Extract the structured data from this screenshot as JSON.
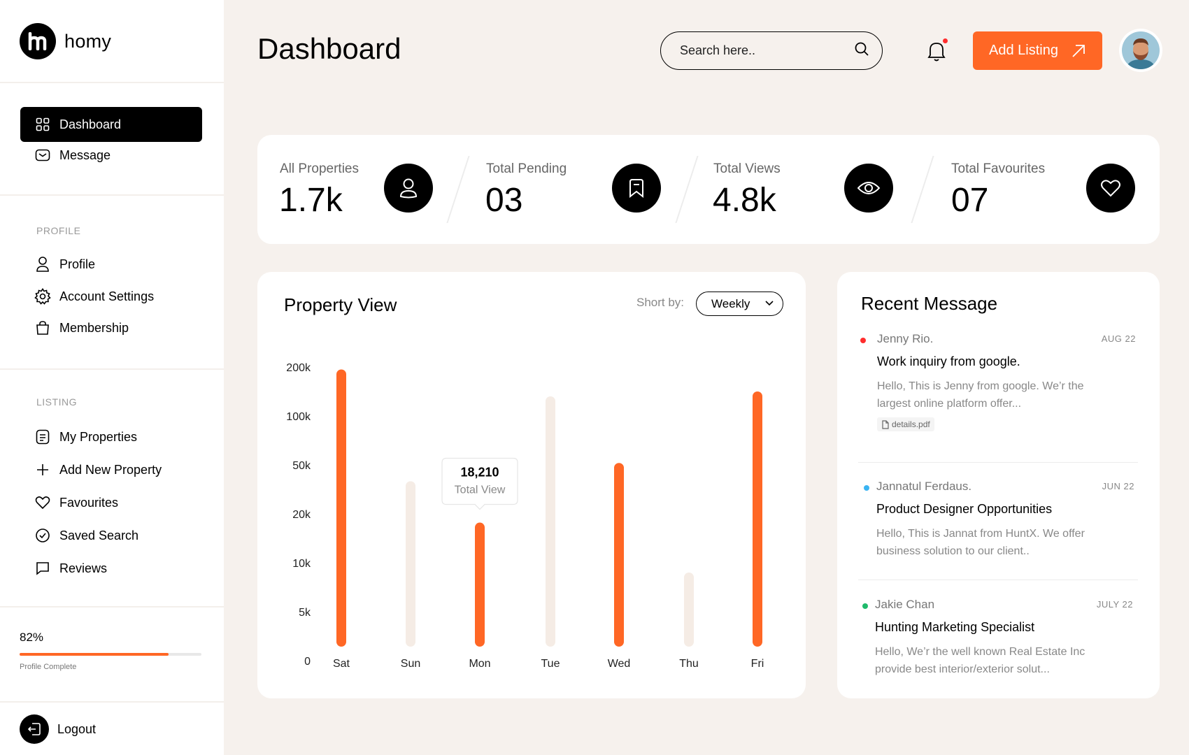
{
  "brand": {
    "name": "homy"
  },
  "sidebar": {
    "main": [
      {
        "label": "Dashboard",
        "icon": "grid-icon"
      },
      {
        "label": "Message",
        "icon": "mail-icon"
      }
    ],
    "profile_title": "PROFILE",
    "profile": [
      {
        "label": "Profile",
        "icon": "user-icon"
      },
      {
        "label": "Account Settings",
        "icon": "gear-icon"
      },
      {
        "label": "Membership",
        "icon": "bag-icon"
      }
    ],
    "listing_title": "LISTING",
    "listing": [
      {
        "label": "My Properties",
        "icon": "document-icon"
      },
      {
        "label": "Add New Property",
        "icon": "plus-icon"
      },
      {
        "label": "Favourites",
        "icon": "heart-icon"
      },
      {
        "label": "Saved Search",
        "icon": "check-circle-icon"
      },
      {
        "label": "Reviews",
        "icon": "chat-icon"
      }
    ],
    "progress": {
      "percent_label": "82%",
      "percent": 0.82,
      "label": "Profile Complete"
    },
    "logout": "Logout"
  },
  "header": {
    "title": "Dashboard",
    "search_placeholder": "Search here..",
    "add_button": "Add Listing"
  },
  "stats": [
    {
      "label": "All Properties",
      "value": "1.7k",
      "icon": "user-icon"
    },
    {
      "label": "Total Pending",
      "value": "03",
      "icon": "bookmark-icon"
    },
    {
      "label": "Total Views",
      "value": "4.8k",
      "icon": "eye-icon"
    },
    {
      "label": "Total Favourites",
      "value": "07",
      "icon": "heart-icon"
    }
  ],
  "chart_card": {
    "title": "Property View",
    "sort_label": "Short by:",
    "sort_value": "Weekly",
    "tooltip_value": "18,210",
    "tooltip_label": "Total View"
  },
  "chart_data": {
    "type": "bar",
    "title": "Property View",
    "categories": [
      "Sat",
      "Sun",
      "Mon",
      "Tue",
      "Wed",
      "Thu",
      "Fri"
    ],
    "y_ticks": [
      "200k",
      "100k",
      "50k",
      "20k",
      "10k",
      "5k",
      "0"
    ],
    "y_tick_values": [
      200000,
      100000,
      50000,
      20000,
      10000,
      5000,
      0
    ],
    "values": [
      195000,
      40000,
      18210,
      140000,
      52000,
      9000,
      150000
    ],
    "highlighted": [
      true,
      false,
      true,
      false,
      true,
      false,
      true
    ],
    "colors": {
      "highlight": "#ff6725",
      "muted": "#f5ece5"
    },
    "xlabel": "",
    "ylabel": "",
    "ylim": [
      0,
      200000
    ]
  },
  "messages": {
    "title": "Recent Message",
    "items": [
      {
        "name": "Jenny Rio.",
        "date": "AUG 22",
        "subject": "Work inquiry from google.",
        "body": "Hello, This is Jenny from google. We’r the largest online platform offer...",
        "attachment": "details.pdf",
        "dot_color": "#ff2d2d"
      },
      {
        "name": "Jannatul Ferdaus.",
        "date": "JUN 22",
        "subject": "Product Designer Opportunities",
        "body": "Hello, This is Jannat from HuntX. We offer business solution to our client..",
        "dot_color": "#3ab4f2"
      },
      {
        "name": "Jakie Chan",
        "date": "JULY 22",
        "subject": "Hunting Marketing Specialist",
        "body": "Hello, We’r the well known Real Estate Inc provide best interior/exterior solut...",
        "dot_color": "#1fba6b"
      }
    ]
  },
  "colors": {
    "accent": "#ff6725",
    "background": "#f6f1ed",
    "dark": "#000000"
  }
}
